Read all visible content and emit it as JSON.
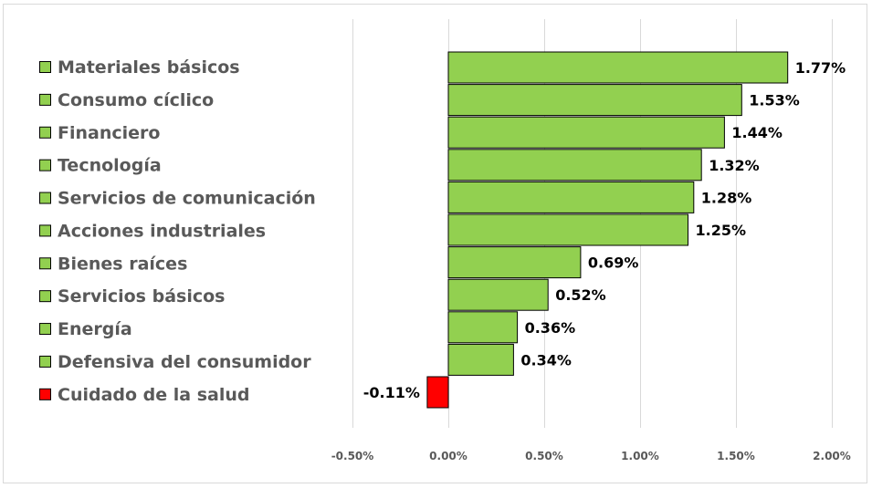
{
  "chart_data": {
    "type": "bar",
    "orientation": "horizontal",
    "categories": [
      "Materiales básicos",
      "Consumo cíclico",
      "Financiero",
      "Tecnología",
      "Servicios de comunicación",
      "Acciones industriales",
      "Bienes raíces",
      "Servicios básicos",
      "Energía",
      "Defensiva del consumidor",
      "Cuidado de la salud"
    ],
    "values": [
      1.77,
      1.53,
      1.44,
      1.32,
      1.28,
      1.25,
      0.69,
      0.52,
      0.36,
      0.34,
      -0.11
    ],
    "data_labels": [
      "1.77%",
      "1.53%",
      "1.44%",
      "1.32%",
      "1.28%",
      "1.25%",
      "0.69%",
      "0.52%",
      "0.36%",
      "0.34%",
      "-0.11%"
    ],
    "xticks": [
      -0.5,
      0,
      0.5,
      1,
      1.5,
      2
    ],
    "xtick_labels": [
      "-0.50%",
      "0.00%",
      "0.50%",
      "1.00%",
      "1.50%",
      "2.00%"
    ],
    "xlim": [
      -0.5,
      2
    ],
    "grid": "vertical",
    "legend_position": "left",
    "colors": {
      "positive": "#92d050",
      "negative": "#ff0000",
      "border": "#000000",
      "grid": "#d9d9d9",
      "text": "#595959"
    }
  }
}
